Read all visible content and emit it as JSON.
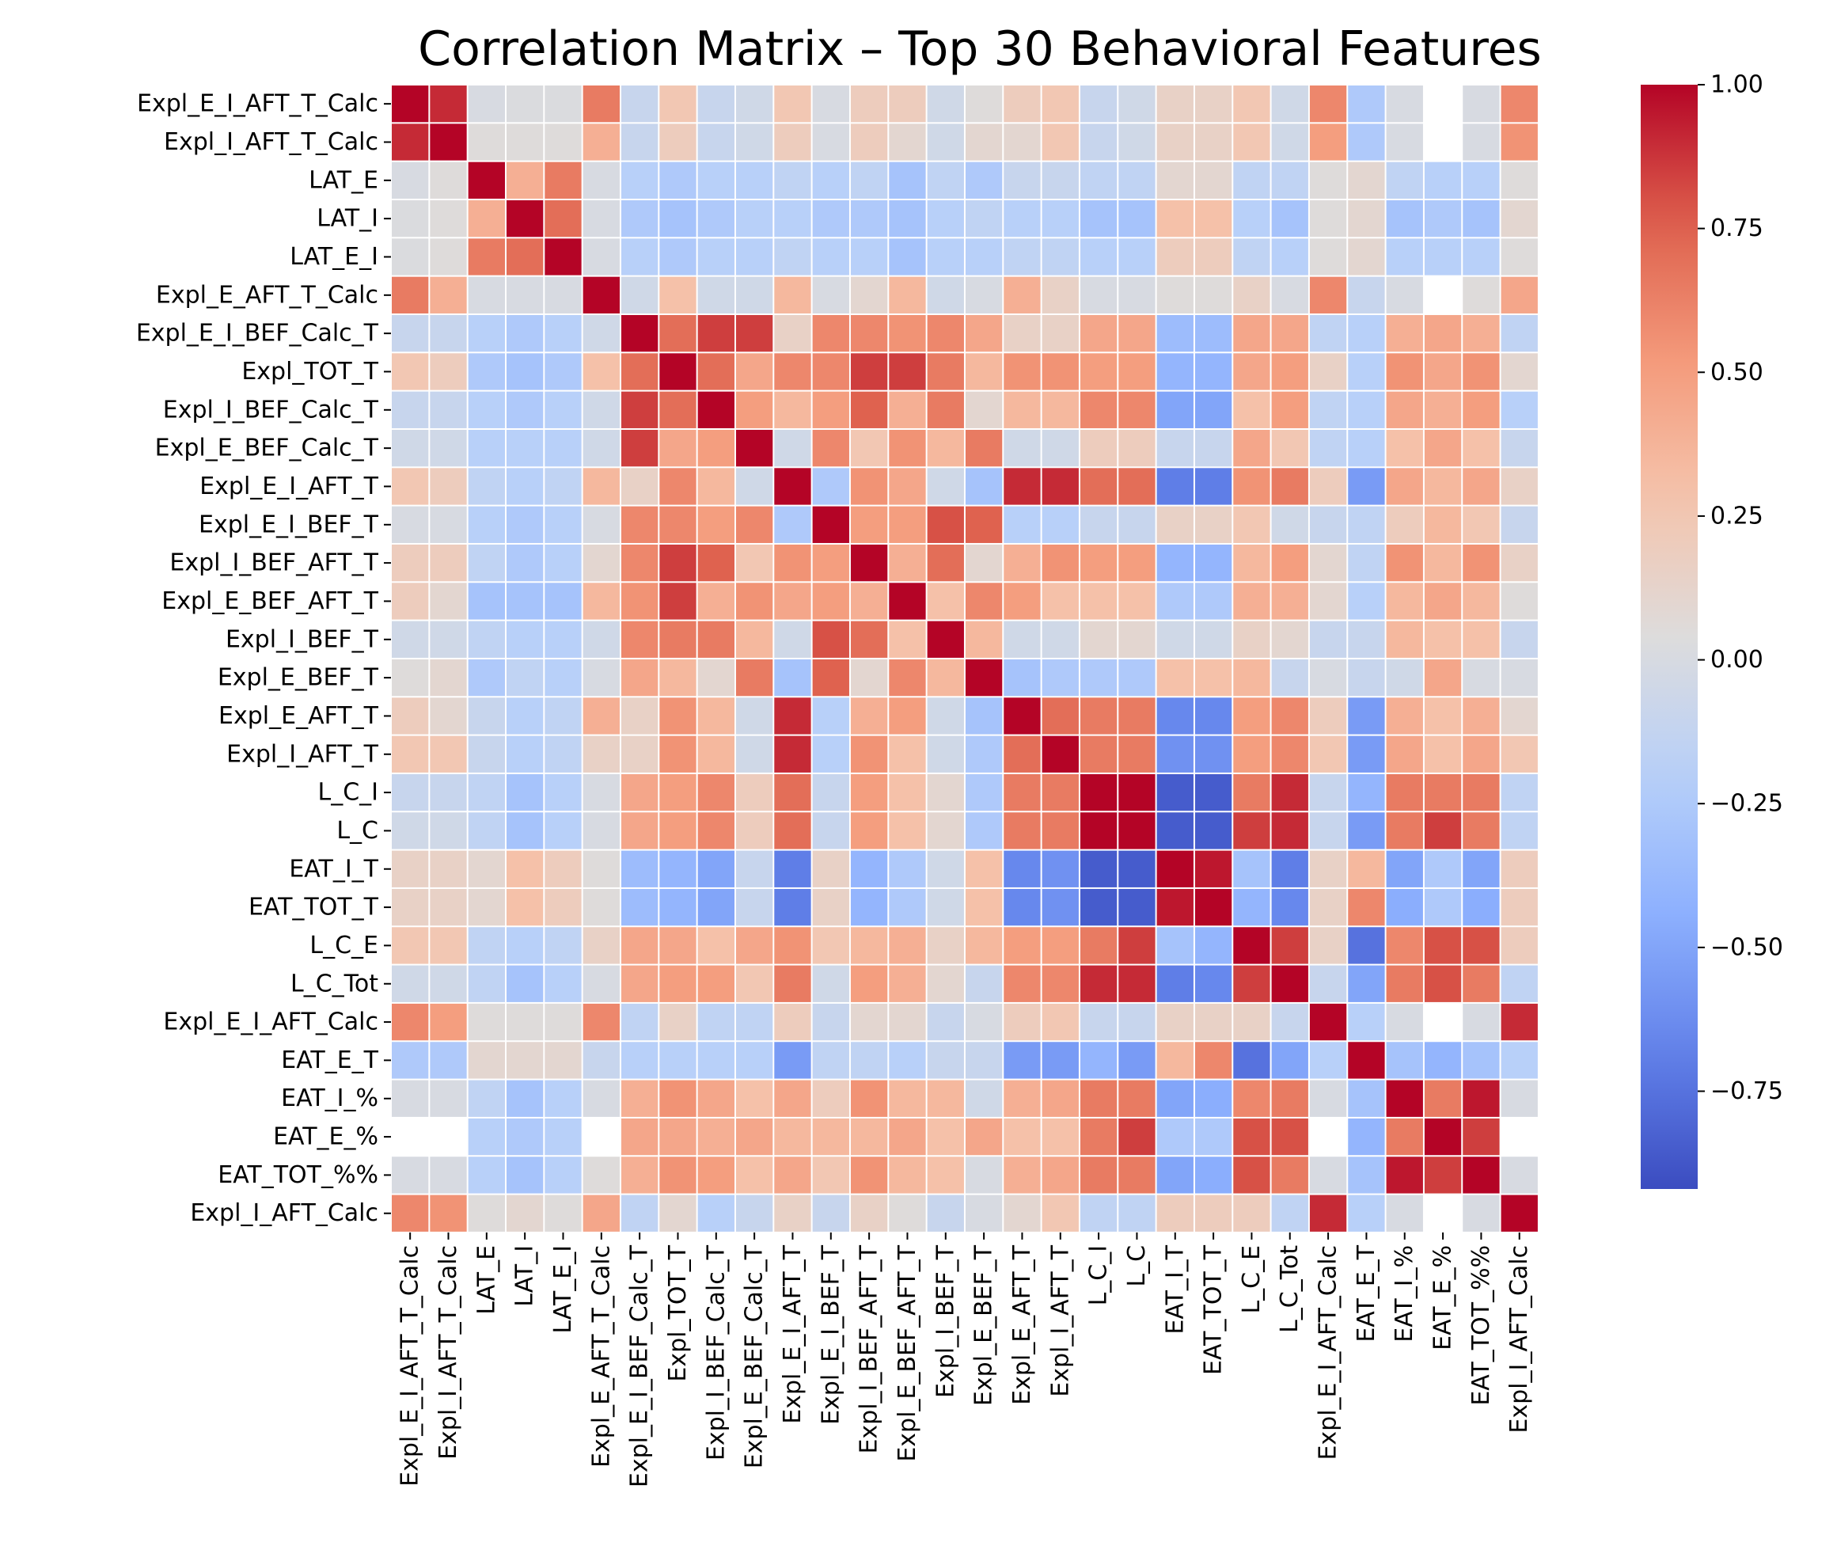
{
  "chart_data": {
    "type": "heatmap",
    "title": "Correlation Matrix – Top 30 Behavioral Features",
    "xlabel": "",
    "ylabel": "",
    "labels": [
      "Expl_E_I_AFT_T_Calc",
      "Expl_I_AFT_T_Calc",
      "LAT_E",
      "LAT_I",
      "LAT_E_I",
      "Expl_E_AFT_T_Calc",
      "Expl_E_I_BEF_Calc_T",
      "Expl_TOT_T",
      "Expl_I_BEF_Calc_T",
      "Expl_E_BEF_Calc_T",
      "Expl_E_I_AFT_T",
      "Expl_E_I_BEF_T",
      "Expl_I_BEF_AFT_T",
      "Expl_E_BEF_AFT_T",
      "Expl_I_BEF_T",
      "Expl_E_BEF_T",
      "Expl_E_AFT_T",
      "Expl_I_AFT_T",
      "L_C_I",
      "L_C",
      "EAT_I_T",
      "EAT_TOT_T",
      "L_C_E",
      "L_C_Tot",
      "Expl_E_I_AFT_Calc",
      "EAT_E_T",
      "EAT_I_%",
      "EAT_E_%",
      "EAT_TOT_%%",
      "Expl_I_AFT_Calc"
    ],
    "colormap": "coolwarm",
    "vmin": -0.92,
    "vmax": 1.0,
    "colorbar_ticks": [
      "1.00",
      "0.75",
      "0.50",
      "0.25",
      "0.00",
      "−0.25",
      "−0.50",
      "−0.75"
    ],
    "colorbar_tick_values": [
      1.0,
      0.75,
      0.5,
      0.25,
      0.0,
      -0.25,
      -0.5,
      -0.75
    ],
    "missing_color": "#ffffff",
    "grid_color": "#ffffff",
    "matrix": [
      [
        1.0,
        0.9,
        0.0,
        0.02,
        0.02,
        0.65,
        -0.1,
        0.25,
        -0.1,
        -0.05,
        0.25,
        0.0,
        0.2,
        0.2,
        -0.05,
        0.05,
        0.2,
        0.25,
        -0.1,
        -0.05,
        0.15,
        0.15,
        0.25,
        -0.05,
        0.6,
        -0.25,
        0.0,
        null,
        0.0,
        0.6
      ],
      [
        0.9,
        1.0,
        0.05,
        0.05,
        0.05,
        0.4,
        -0.1,
        0.2,
        -0.1,
        -0.05,
        0.2,
        0.0,
        0.2,
        0.1,
        -0.05,
        0.1,
        0.1,
        0.25,
        -0.1,
        -0.05,
        0.15,
        0.15,
        0.25,
        -0.05,
        0.5,
        -0.25,
        0.0,
        null,
        0.0,
        0.55
      ],
      [
        0.0,
        0.05,
        1.0,
        0.4,
        0.65,
        0.0,
        -0.2,
        -0.25,
        -0.2,
        -0.2,
        -0.15,
        -0.2,
        -0.15,
        -0.3,
        -0.15,
        -0.25,
        -0.1,
        -0.1,
        -0.15,
        -0.15,
        0.1,
        0.1,
        -0.15,
        -0.15,
        0.05,
        0.1,
        -0.15,
        -0.2,
        -0.2,
        0.05
      ],
      [
        0.02,
        0.05,
        0.4,
        1.0,
        0.7,
        0.0,
        -0.25,
        -0.3,
        -0.25,
        -0.2,
        -0.2,
        -0.25,
        -0.25,
        -0.3,
        -0.2,
        -0.15,
        -0.2,
        -0.2,
        -0.3,
        -0.3,
        0.3,
        0.3,
        -0.2,
        -0.3,
        0.05,
        0.1,
        -0.3,
        -0.25,
        -0.3,
        0.1
      ],
      [
        0.02,
        0.05,
        0.65,
        0.7,
        1.0,
        0.0,
        -0.2,
        -0.25,
        -0.2,
        -0.2,
        -0.15,
        -0.2,
        -0.2,
        -0.3,
        -0.2,
        -0.2,
        -0.15,
        -0.15,
        -0.2,
        -0.2,
        0.2,
        0.2,
        -0.15,
        -0.2,
        0.05,
        0.1,
        -0.2,
        -0.2,
        -0.2,
        0.05
      ],
      [
        0.65,
        0.4,
        0.0,
        0.0,
        0.0,
        1.0,
        -0.05,
        0.3,
        -0.05,
        -0.05,
        0.35,
        0.0,
        0.1,
        0.35,
        -0.05,
        0.0,
        0.4,
        0.15,
        0.0,
        0.0,
        0.05,
        0.05,
        0.15,
        0.0,
        0.6,
        -0.1,
        0.0,
        null,
        0.05,
        0.45
      ],
      [
        -0.1,
        -0.1,
        -0.2,
        -0.25,
        -0.2,
        -0.05,
        1.0,
        0.7,
        0.85,
        0.85,
        0.15,
        0.6,
        0.6,
        0.55,
        0.6,
        0.45,
        0.15,
        0.15,
        0.45,
        0.45,
        -0.35,
        -0.35,
        0.45,
        0.45,
        -0.15,
        -0.2,
        0.4,
        0.45,
        0.4,
        -0.15
      ],
      [
        0.25,
        0.2,
        -0.25,
        -0.3,
        -0.25,
        0.3,
        0.7,
        1.0,
        0.7,
        0.45,
        0.6,
        0.6,
        0.85,
        0.85,
        0.65,
        0.35,
        0.55,
        0.55,
        0.5,
        0.5,
        -0.4,
        -0.4,
        0.45,
        0.5,
        0.15,
        -0.2,
        0.55,
        0.45,
        0.55,
        0.1
      ],
      [
        -0.1,
        -0.1,
        -0.2,
        -0.25,
        -0.2,
        -0.05,
        0.85,
        0.7,
        1.0,
        0.5,
        0.35,
        0.5,
        0.75,
        0.4,
        0.65,
        0.1,
        0.35,
        0.35,
        0.6,
        0.6,
        -0.5,
        -0.5,
        0.3,
        0.5,
        -0.15,
        -0.2,
        0.45,
        0.4,
        0.5,
        -0.2
      ],
      [
        -0.05,
        -0.05,
        -0.2,
        -0.2,
        -0.2,
        -0.05,
        0.85,
        0.45,
        0.5,
        1.0,
        -0.05,
        0.6,
        0.25,
        0.55,
        0.35,
        0.65,
        -0.05,
        -0.05,
        0.2,
        0.2,
        -0.1,
        -0.1,
        0.45,
        0.25,
        -0.15,
        -0.2,
        0.3,
        0.45,
        0.3,
        -0.1
      ],
      [
        0.25,
        0.2,
        -0.15,
        -0.2,
        -0.15,
        0.35,
        0.15,
        0.6,
        0.35,
        -0.05,
        1.0,
        -0.25,
        0.55,
        0.45,
        -0.05,
        -0.3,
        0.9,
        0.9,
        0.7,
        0.7,
        -0.7,
        -0.7,
        0.55,
        0.65,
        0.2,
        -0.55,
        0.45,
        0.35,
        0.45,
        0.15
      ],
      [
        0.0,
        0.0,
        -0.2,
        -0.25,
        -0.2,
        0.0,
        0.6,
        0.6,
        0.5,
        0.6,
        -0.25,
        1.0,
        0.5,
        0.5,
        0.8,
        0.75,
        -0.2,
        -0.2,
        -0.1,
        -0.1,
        0.15,
        0.15,
        0.25,
        -0.05,
        -0.1,
        -0.15,
        0.2,
        0.35,
        0.25,
        -0.1
      ],
      [
        0.2,
        0.2,
        -0.15,
        -0.25,
        -0.2,
        0.1,
        0.6,
        0.85,
        0.75,
        0.25,
        0.55,
        0.5,
        1.0,
        0.4,
        0.7,
        0.1,
        0.4,
        0.55,
        0.5,
        0.5,
        -0.4,
        -0.4,
        0.35,
        0.5,
        0.1,
        -0.15,
        0.55,
        0.35,
        0.55,
        0.15
      ],
      [
        0.2,
        0.1,
        -0.3,
        -0.3,
        -0.3,
        0.35,
        0.55,
        0.85,
        0.4,
        0.55,
        0.45,
        0.5,
        0.4,
        1.0,
        0.3,
        0.6,
        0.5,
        0.3,
        0.3,
        0.3,
        -0.25,
        -0.25,
        0.4,
        0.4,
        0.1,
        -0.2,
        0.35,
        0.45,
        0.35,
        0.05
      ],
      [
        -0.05,
        -0.05,
        -0.15,
        -0.2,
        -0.2,
        -0.05,
        0.6,
        0.65,
        0.65,
        0.35,
        -0.05,
        0.8,
        0.7,
        0.3,
        1.0,
        0.35,
        -0.05,
        -0.05,
        0.1,
        0.1,
        -0.05,
        -0.05,
        0.15,
        0.1,
        -0.1,
        -0.1,
        0.35,
        0.3,
        0.3,
        -0.1
      ],
      [
        0.05,
        0.1,
        -0.25,
        -0.15,
        -0.2,
        0.0,
        0.45,
        0.35,
        0.1,
        0.65,
        -0.3,
        0.75,
        0.1,
        0.6,
        0.35,
        1.0,
        -0.3,
        -0.25,
        -0.25,
        -0.25,
        0.3,
        0.3,
        0.35,
        -0.1,
        0.0,
        -0.1,
        -0.05,
        0.45,
        0.0,
        0.0
      ],
      [
        0.2,
        0.1,
        -0.1,
        -0.2,
        -0.15,
        0.4,
        0.15,
        0.55,
        0.35,
        -0.05,
        0.9,
        -0.2,
        0.4,
        0.5,
        -0.05,
        -0.3,
        1.0,
        0.7,
        0.65,
        0.65,
        -0.65,
        -0.65,
        0.5,
        0.6,
        0.2,
        -0.55,
        0.4,
        0.3,
        0.4,
        0.1
      ],
      [
        0.25,
        0.25,
        -0.1,
        -0.2,
        -0.15,
        0.15,
        0.15,
        0.55,
        0.35,
        -0.05,
        0.9,
        -0.2,
        0.55,
        0.3,
        -0.05,
        -0.25,
        0.7,
        1.0,
        0.65,
        0.65,
        -0.6,
        -0.6,
        0.5,
        0.6,
        0.25,
        -0.55,
        0.45,
        0.3,
        0.45,
        0.25
      ],
      [
        -0.1,
        -0.1,
        -0.15,
        -0.3,
        -0.2,
        0.0,
        0.45,
        0.5,
        0.6,
        0.2,
        0.7,
        -0.1,
        0.5,
        0.3,
        0.1,
        -0.25,
        0.65,
        0.65,
        1.0,
        1.0,
        -0.85,
        -0.85,
        0.65,
        0.9,
        -0.1,
        -0.4,
        0.65,
        0.65,
        0.65,
        -0.15
      ],
      [
        -0.05,
        -0.05,
        -0.15,
        -0.3,
        -0.2,
        0.0,
        0.45,
        0.5,
        0.6,
        0.2,
        0.7,
        -0.1,
        0.5,
        0.3,
        0.1,
        -0.25,
        0.65,
        0.65,
        1.0,
        1.0,
        -0.85,
        -0.85,
        0.85,
        0.9,
        -0.1,
        -0.55,
        0.65,
        0.85,
        0.65,
        -0.15
      ],
      [
        0.15,
        0.15,
        0.1,
        0.3,
        0.2,
        0.05,
        -0.35,
        -0.4,
        -0.5,
        -0.1,
        -0.7,
        0.15,
        -0.4,
        -0.25,
        -0.05,
        0.3,
        -0.65,
        -0.6,
        -0.85,
        -0.85,
        1.0,
        0.95,
        -0.3,
        -0.7,
        0.15,
        0.35,
        -0.5,
        -0.25,
        -0.5,
        0.2
      ],
      [
        0.15,
        0.15,
        0.1,
        0.3,
        0.2,
        0.05,
        -0.35,
        -0.4,
        -0.5,
        -0.1,
        -0.7,
        0.15,
        -0.4,
        -0.25,
        -0.05,
        0.3,
        -0.65,
        -0.6,
        -0.85,
        -0.85,
        0.95,
        1.0,
        -0.4,
        -0.65,
        0.15,
        0.6,
        -0.45,
        -0.25,
        -0.45,
        0.2
      ],
      [
        0.25,
        0.25,
        -0.15,
        -0.2,
        -0.15,
        0.15,
        0.45,
        0.45,
        0.3,
        0.45,
        0.55,
        0.25,
        0.35,
        0.4,
        0.15,
        0.35,
        0.5,
        0.5,
        0.65,
        0.85,
        -0.3,
        -0.4,
        1.0,
        0.85,
        0.15,
        -0.75,
        0.6,
        0.8,
        0.8,
        0.2
      ],
      [
        -0.05,
        -0.05,
        -0.15,
        -0.3,
        -0.2,
        0.0,
        0.45,
        0.5,
        0.5,
        0.25,
        0.65,
        -0.05,
        0.5,
        0.4,
        0.1,
        -0.1,
        0.6,
        0.6,
        0.9,
        0.9,
        -0.7,
        -0.65,
        0.85,
        1.0,
        -0.1,
        -0.5,
        0.65,
        0.8,
        0.65,
        -0.15
      ],
      [
        0.6,
        0.5,
        0.05,
        0.05,
        0.05,
        0.6,
        -0.15,
        0.15,
        -0.15,
        -0.15,
        0.2,
        -0.1,
        0.1,
        0.1,
        -0.1,
        0.0,
        0.2,
        0.25,
        -0.1,
        -0.1,
        0.15,
        0.15,
        0.15,
        -0.1,
        1.0,
        -0.2,
        0.0,
        null,
        0.0,
        0.9
      ],
      [
        -0.25,
        -0.25,
        0.1,
        0.1,
        0.1,
        -0.1,
        -0.2,
        -0.2,
        -0.2,
        -0.2,
        -0.55,
        -0.15,
        -0.15,
        -0.2,
        -0.1,
        -0.1,
        -0.55,
        -0.55,
        -0.4,
        -0.55,
        0.35,
        0.6,
        -0.75,
        -0.5,
        -0.2,
        1.0,
        -0.3,
        -0.4,
        -0.3,
        -0.2
      ],
      [
        0.0,
        0.0,
        -0.15,
        -0.3,
        -0.2,
        0.0,
        0.4,
        0.55,
        0.45,
        0.3,
        0.45,
        0.2,
        0.55,
        0.35,
        0.35,
        -0.05,
        0.4,
        0.45,
        0.65,
        0.65,
        -0.5,
        -0.45,
        0.6,
        0.65,
        0.0,
        -0.3,
        1.0,
        0.65,
        0.95,
        0.0
      ],
      [
        null,
        null,
        -0.2,
        -0.25,
        -0.2,
        null,
        0.45,
        0.45,
        0.4,
        0.45,
        0.35,
        0.35,
        0.35,
        0.45,
        0.3,
        0.45,
        0.3,
        0.3,
        0.65,
        0.85,
        -0.25,
        -0.25,
        0.8,
        0.8,
        null,
        -0.4,
        0.65,
        1.0,
        0.85,
        null
      ],
      [
        0.0,
        0.0,
        -0.2,
        -0.3,
        -0.2,
        0.05,
        0.4,
        0.55,
        0.5,
        0.3,
        0.45,
        0.25,
        0.55,
        0.35,
        0.3,
        0.0,
        0.4,
        0.45,
        0.65,
        0.65,
        -0.5,
        -0.45,
        0.8,
        0.65,
        0.0,
        -0.3,
        0.95,
        0.85,
        1.0,
        0.0
      ],
      [
        0.6,
        0.55,
        0.05,
        0.1,
        0.05,
        0.45,
        -0.15,
        0.1,
        -0.2,
        -0.1,
        0.15,
        -0.1,
        0.15,
        0.05,
        -0.1,
        0.0,
        0.1,
        0.25,
        -0.15,
        -0.15,
        0.2,
        0.2,
        0.2,
        -0.15,
        0.9,
        -0.2,
        0.0,
        null,
        0.0,
        1.0
      ]
    ]
  }
}
